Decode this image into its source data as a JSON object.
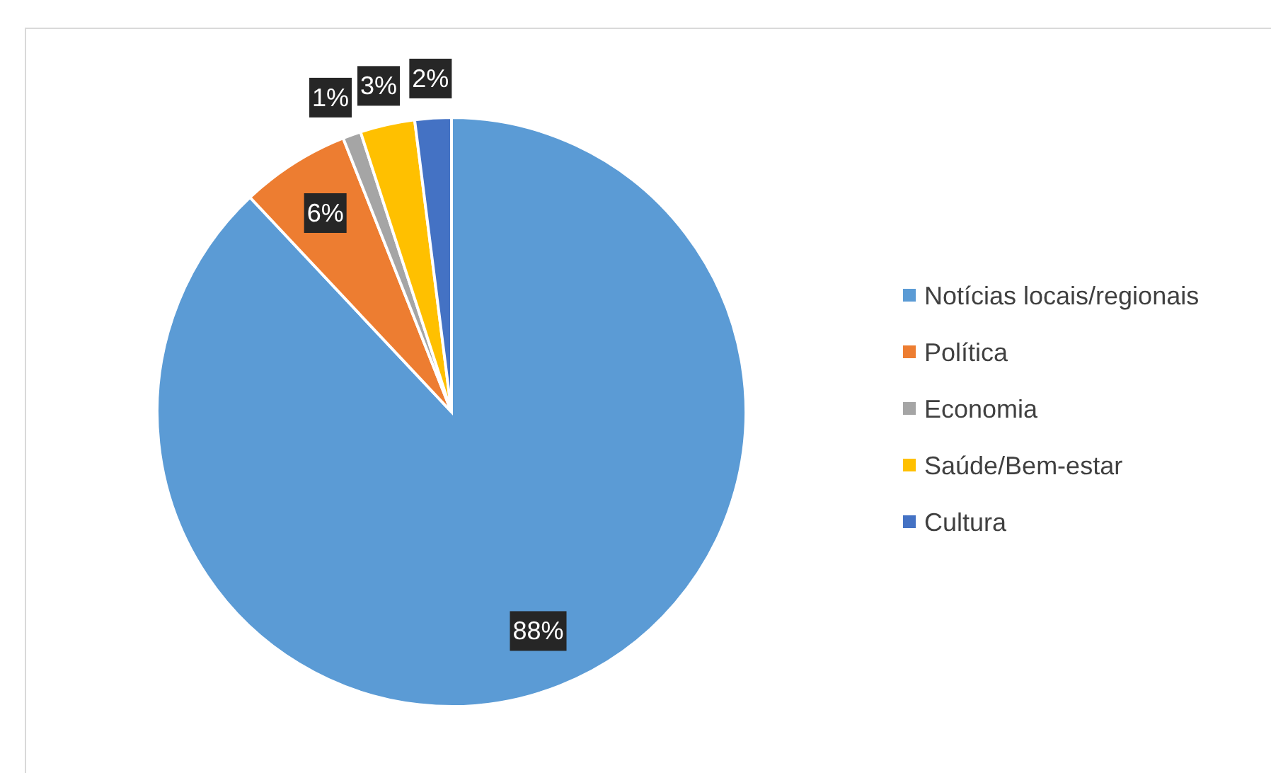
{
  "chart_data": {
    "type": "pie",
    "categories": [
      "Notícias locais/regionais",
      "Política",
      "Economia",
      "Saúde/Bem-estar",
      "Cultura"
    ],
    "values": [
      88,
      6,
      1,
      3,
      2
    ],
    "colors": [
      "#5b9bd5",
      "#ed7d31",
      "#a5a5a5",
      "#ffc000",
      "#4472c4"
    ],
    "value_labels": [
      "88%",
      "6%",
      "1%",
      "3%",
      "2%"
    ],
    "legend": "right"
  }
}
